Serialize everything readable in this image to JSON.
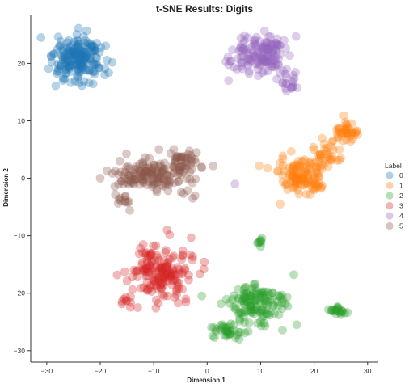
{
  "chart_data": {
    "type": "scatter",
    "title": "t-SNE Results: Digits",
    "xlabel": "Dimension 1",
    "ylabel": "Dimension 2",
    "xlim": [
      -33,
      32
    ],
    "ylim": [
      -32,
      28.5
    ],
    "xticks": [
      -30,
      -20,
      -10,
      0,
      10,
      20,
      30
    ],
    "yticks": [
      20,
      10,
      0,
      -10,
      -20,
      -30
    ],
    "xtick_labels": [
      "−30",
      "−20",
      "−10",
      "0",
      "10",
      "20",
      "30"
    ],
    "ytick_labels": [
      "20",
      "10",
      "0",
      "−10",
      "−20",
      "−30"
    ],
    "grid": false,
    "legend": {
      "title": "Label",
      "placement": "right"
    },
    "series": [
      {
        "name": "0",
        "color": "#1f77b4",
        "clusters": [
          {
            "cx": -24,
            "cy": 20.5,
            "sx": 3.2,
            "sy": 2.8,
            "n": 190
          }
        ],
        "points": []
      },
      {
        "name": "1",
        "color": "#ff7f0e",
        "clusters": [
          {
            "cx": 17.5,
            "cy": 0,
            "sx": 2.6,
            "sy": 2.0,
            "n": 120
          },
          {
            "cx": 22,
            "cy": 4.5,
            "sx": 2.0,
            "sy": 1.6,
            "n": 30
          },
          {
            "cx": 26,
            "cy": 8.2,
            "sx": 1.6,
            "sy": 1.1,
            "n": 40
          }
        ],
        "points": [
          [
            20,
            5
          ],
          [
            21,
            3.5
          ],
          [
            23.5,
            6.5
          ],
          [
            19,
            2
          ]
        ]
      },
      {
        "name": "2",
        "color": "#2ca02c",
        "clusters": [
          {
            "cx": 9.5,
            "cy": -22,
            "sx": 3.6,
            "sy": 2.5,
            "n": 130
          },
          {
            "cx": 3.5,
            "cy": -26.5,
            "sx": 2.3,
            "sy": 1.1,
            "n": 35
          },
          {
            "cx": 10,
            "cy": -11,
            "sx": 0.4,
            "sy": 0.6,
            "n": 8
          },
          {
            "cx": 24.5,
            "cy": -23,
            "sx": 1.1,
            "sy": 0.5,
            "n": 22
          }
        ],
        "points": [
          [
            -1,
            -20.5
          ],
          [
            6,
            -28
          ],
          [
            1,
            -27.5
          ]
        ]
      },
      {
        "name": "3",
        "color": "#d62728",
        "clusters": [
          {
            "cx": -9,
            "cy": -16.5,
            "sx": 3.6,
            "sy": 2.8,
            "n": 175
          },
          {
            "cx": -15,
            "cy": -21.5,
            "sx": 0.6,
            "sy": 0.6,
            "n": 8
          }
        ],
        "points": [
          [
            -7.5,
            -9
          ],
          [
            -4,
            -21
          ],
          [
            -13,
            -22.5
          ]
        ]
      },
      {
        "name": "4",
        "color": "#9467bd",
        "clusters": [
          {
            "cx": 10.5,
            "cy": 21.5,
            "sx": 3.3,
            "sy": 2.5,
            "n": 150
          },
          {
            "cx": 15.5,
            "cy": 16.5,
            "sx": 1.1,
            "sy": 0.9,
            "n": 16
          }
        ],
        "points": [
          [
            5.2,
            -1
          ],
          [
            4,
            17
          ]
        ]
      },
      {
        "name": "5",
        "color": "#8c564b",
        "clusters": [
          {
            "cx": -10,
            "cy": 0.8,
            "sx": 4.8,
            "sy": 2.0,
            "n": 150
          },
          {
            "cx": -5,
            "cy": 3.0,
            "sx": 2.2,
            "sy": 1.2,
            "n": 40
          },
          {
            "cx": -15.5,
            "cy": -4,
            "sx": 1.2,
            "sy": 1.2,
            "n": 12
          }
        ],
        "points": [
          [
            -20,
            0
          ],
          [
            -2,
            4.5
          ]
        ]
      }
    ]
  }
}
